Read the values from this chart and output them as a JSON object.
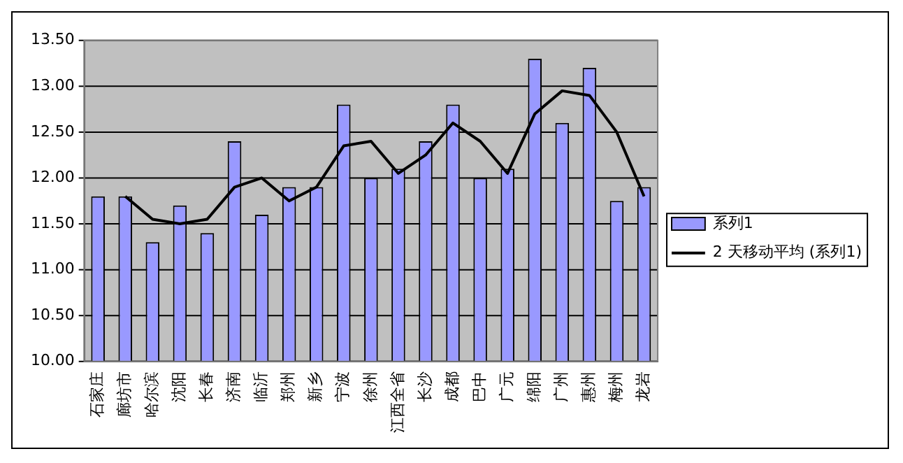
{
  "chart_data": {
    "type": "bar",
    "categories": [
      "石家庄",
      "廊坊市",
      "哈尔滨",
      "沈阳",
      "长春",
      "济南",
      "临沂",
      "郑州",
      "新乡",
      "宁波",
      "徐州",
      "江西全省",
      "长沙",
      "成都",
      "巴中",
      "广元",
      "绵阳",
      "广州",
      "惠州",
      "梅州",
      "龙岩"
    ],
    "series": [
      {
        "name": "系列1",
        "color": "#9999ff",
        "values": [
          11.8,
          11.8,
          11.3,
          11.7,
          11.4,
          12.4,
          11.6,
          11.9,
          11.9,
          12.8,
          12.0,
          12.1,
          12.4,
          12.8,
          12.0,
          12.1,
          13.3,
          12.6,
          13.2,
          11.75,
          11.9
        ]
      },
      {
        "name": "2 天移动平均 (系列1)",
        "type": "line",
        "color": "#000000",
        "values": [
          null,
          11.8,
          11.55,
          11.5,
          11.55,
          11.9,
          12.0,
          11.75,
          11.9,
          12.35,
          12.4,
          12.05,
          12.25,
          12.6,
          12.4,
          12.05,
          12.7,
          12.95,
          12.9,
          12.5,
          11.8
        ]
      }
    ],
    "ylim": [
      10,
      13.5
    ],
    "yticks": [
      {
        "value": 10,
        "label": "10.00"
      },
      {
        "value": 10.5,
        "label": "10.50"
      },
      {
        "value": 11,
        "label": "11.00"
      },
      {
        "value": 11.5,
        "label": "11.50"
      },
      {
        "value": 12,
        "label": "12.00"
      },
      {
        "value": 12.5,
        "label": "12.50"
      },
      {
        "value": 13,
        "label": "13.00"
      },
      {
        "value": 13.5,
        "label": "13.50"
      }
    ],
    "grid": "y",
    "legend": "right",
    "marker": "none",
    "line_style": "solid"
  }
}
